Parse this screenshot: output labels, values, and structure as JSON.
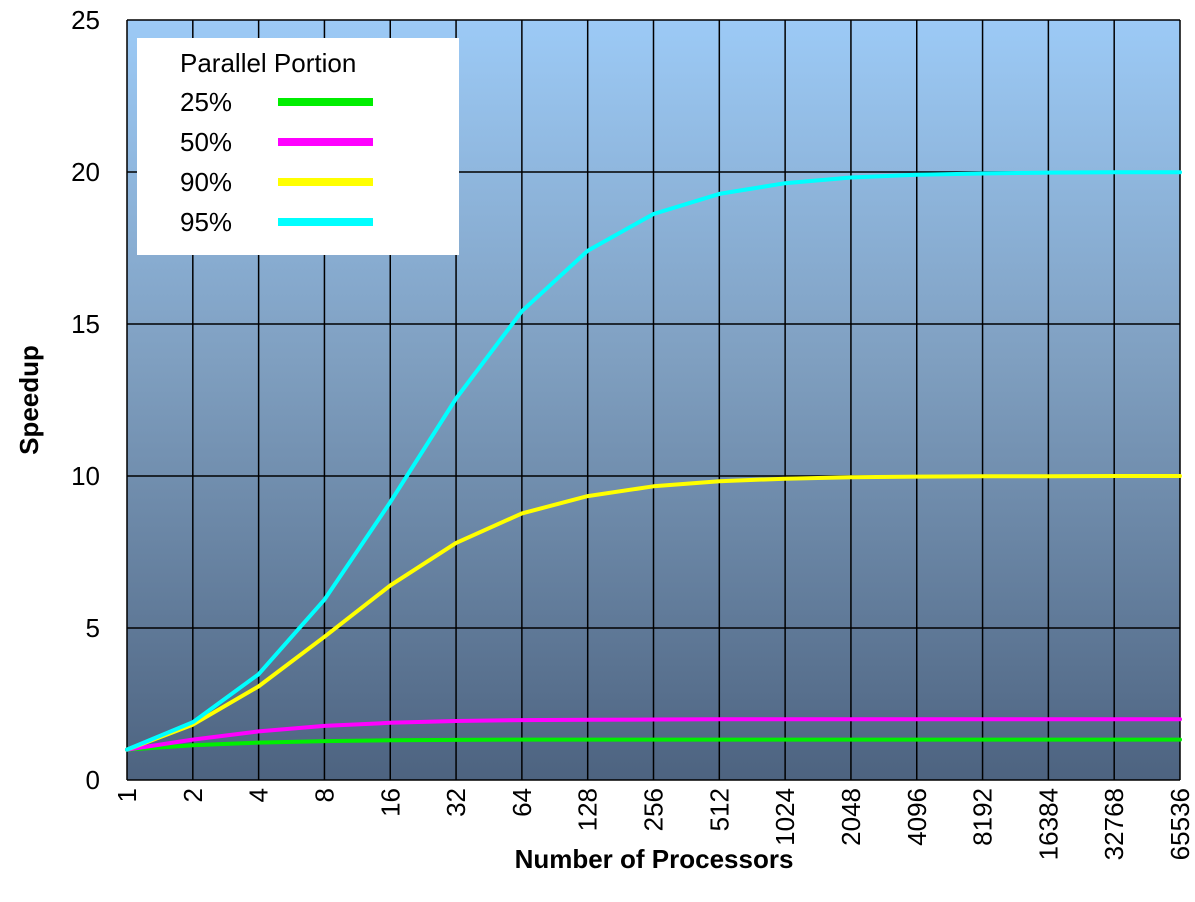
{
  "chart_data": {
    "type": "line",
    "xlabel": "Number of Processors",
    "ylabel": "Speedup",
    "ylim": [
      0,
      25
    ],
    "yticks": [
      "0",
      "5",
      "10",
      "15",
      "20",
      "25"
    ],
    "x": [
      "1",
      "2",
      "4",
      "8",
      "16",
      "32",
      "64",
      "128",
      "256",
      "512",
      "1024",
      "2048",
      "4096",
      "8192",
      "16384",
      "32768",
      "65536"
    ],
    "x_scale": "log2",
    "grid": true,
    "legend": {
      "title": "Parallel Portion",
      "placement": "top-left"
    },
    "series": [
      {
        "name": "25%",
        "color": "#00ee00",
        "values": [
          1.0,
          1.14,
          1.23,
          1.28,
          1.31,
          1.32,
          1.33,
          1.33,
          1.33,
          1.33,
          1.33,
          1.33,
          1.33,
          1.33,
          1.33,
          1.33,
          1.33
        ]
      },
      {
        "name": "50%",
        "color": "#ff00ff",
        "values": [
          1.0,
          1.33,
          1.6,
          1.78,
          1.88,
          1.94,
          1.97,
          1.98,
          1.99,
          2.0,
          2.0,
          2.0,
          2.0,
          2.0,
          2.0,
          2.0,
          2.0
        ]
      },
      {
        "name": "90%",
        "color": "#ffff00",
        "values": [
          1.0,
          1.82,
          3.08,
          4.71,
          6.4,
          7.8,
          8.77,
          9.34,
          9.66,
          9.83,
          9.91,
          9.96,
          9.98,
          9.99,
          9.99,
          10.0,
          10.0
        ]
      },
      {
        "name": "95%",
        "color": "#00ffff",
        "values": [
          1.0,
          1.9,
          3.48,
          5.93,
          9.14,
          12.55,
          15.42,
          17.41,
          18.62,
          19.28,
          19.63,
          19.82,
          19.91,
          19.95,
          19.98,
          19.99,
          19.99
        ]
      }
    ]
  }
}
